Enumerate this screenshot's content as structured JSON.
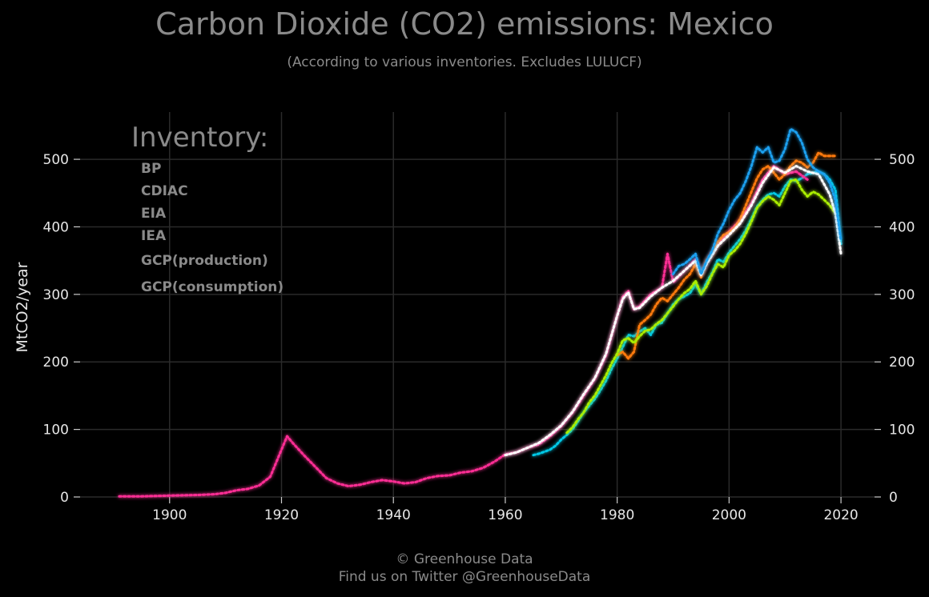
{
  "header": {
    "title": "Carbon Dioxide (CO2) emissions: Mexico",
    "subtitle": "(According to various inventories. Excludes LULUCF)"
  },
  "footer": {
    "line1": "© Greenhouse Data",
    "line2": "Find us on Twitter @GreenhouseData"
  },
  "chart_data": {
    "type": "line",
    "title": "Carbon Dioxide (CO2) emissions: Mexico",
    "subtitle": "(According to various inventories. Excludes LULUCF)",
    "ylabel": "MtCO2/year",
    "xlabel": "",
    "xlim": [
      1884,
      2026
    ],
    "ylim": [
      0,
      570
    ],
    "x_ticks": [
      1900,
      1920,
      1940,
      1960,
      1980,
      2000,
      2020
    ],
    "y_ticks": [
      0,
      100,
      200,
      300,
      400,
      500
    ],
    "grid": true,
    "line_style": "dotted with glow",
    "legend": {
      "title": "Inventory:",
      "position": "top-left"
    },
    "series": [
      {
        "name": "BP",
        "color": "#00c8e6",
        "x": [
          1965,
          1966,
          1967,
          1968,
          1969,
          1970,
          1971,
          1972,
          1973,
          1974,
          1975,
          1976,
          1977,
          1978,
          1979,
          1980,
          1981,
          1982,
          1983,
          1984,
          1985,
          1986,
          1987,
          1988,
          1989,
          1990,
          1991,
          1992,
          1993,
          1994,
          1995,
          1996,
          1997,
          1998,
          1999,
          2000,
          2001,
          2002,
          2003,
          2004,
          2005,
          2006,
          2007,
          2008,
          2009,
          2010,
          2011,
          2012,
          2013,
          2014,
          2015,
          2016,
          2017,
          2018,
          2019,
          2020
        ],
        "y": [
          62,
          64,
          67,
          70,
          76,
          85,
          92,
          100,
          112,
          125,
          135,
          145,
          158,
          172,
          190,
          205,
          222,
          240,
          238,
          245,
          250,
          240,
          255,
          258,
          272,
          285,
          293,
          297,
          302,
          315,
          300,
          318,
          332,
          352,
          348,
          362,
          372,
          382,
          395,
          412,
          430,
          440,
          448,
          450,
          445,
          460,
          470,
          468,
          472,
          478,
          480,
          482,
          478,
          470,
          455,
          375
        ]
      },
      {
        "name": "CDIAC",
        "color": "#ff2d95",
        "x": [
          1891,
          1895,
          1900,
          1905,
          1908,
          1910,
          1912,
          1914,
          1916,
          1918,
          1920,
          1921,
          1922,
          1924,
          1926,
          1928,
          1930,
          1932,
          1934,
          1936,
          1938,
          1940,
          1942,
          1944,
          1946,
          1948,
          1950,
          1952,
          1954,
          1956,
          1958,
          1960,
          1962,
          1964,
          1966,
          1968,
          1970,
          1972,
          1974,
          1976,
          1978,
          1980,
          1981,
          1982,
          1983,
          1984,
          1986,
          1988,
          1989,
          1990,
          1992,
          1994,
          1995,
          1996,
          1998,
          2000,
          2002,
          2004,
          2006,
          2008,
          2010,
          2012,
          2014
        ],
        "y": [
          1,
          1,
          2,
          3,
          4,
          6,
          10,
          12,
          17,
          30,
          70,
          90,
          80,
          62,
          45,
          28,
          20,
          16,
          18,
          22,
          25,
          23,
          20,
          22,
          28,
          31,
          32,
          36,
          38,
          43,
          52,
          63,
          66,
          73,
          78,
          90,
          105,
          125,
          150,
          175,
          210,
          268,
          296,
          305,
          278,
          282,
          300,
          310,
          360,
          318,
          335,
          352,
          330,
          348,
          375,
          393,
          410,
          435,
          470,
          490,
          478,
          482,
          470
        ]
      },
      {
        "name": "EIA",
        "color": "#ff7a10",
        "x": [
          1980,
          1981,
          1982,
          1983,
          1984,
          1985,
          1986,
          1987,
          1988,
          1989,
          1990,
          1991,
          1992,
          1993,
          1994,
          1995,
          1996,
          1997,
          1998,
          1999,
          2000,
          2001,
          2002,
          2003,
          2004,
          2005,
          2006,
          2007,
          2008,
          2009,
          2010,
          2011,
          2012,
          2013,
          2014,
          2015,
          2016,
          2017,
          2018,
          2019
        ],
        "y": [
          210,
          215,
          205,
          215,
          255,
          262,
          270,
          285,
          295,
          290,
          300,
          310,
          322,
          330,
          345,
          325,
          350,
          360,
          378,
          388,
          392,
          398,
          412,
          432,
          452,
          472,
          485,
          490,
          480,
          470,
          478,
          490,
          498,
          495,
          488,
          495,
          510,
          505,
          505,
          505
        ]
      },
      {
        "name": "IEA",
        "color": "#aaee00",
        "x": [
          1971,
          1972,
          1973,
          1974,
          1975,
          1976,
          1977,
          1978,
          1979,
          1980,
          1981,
          1982,
          1983,
          1984,
          1985,
          1986,
          1987,
          1988,
          1989,
          1990,
          1991,
          1992,
          1993,
          1994,
          1995,
          1996,
          1997,
          1998,
          1999,
          2000,
          2001,
          2002,
          2003,
          2004,
          2005,
          2006,
          2007,
          2008,
          2009,
          2010,
          2011,
          2012,
          2013,
          2014,
          2015,
          2016,
          2017,
          2018,
          2019
        ],
        "y": [
          95,
          103,
          115,
          125,
          140,
          150,
          165,
          180,
          198,
          212,
          232,
          235,
          228,
          238,
          246,
          248,
          256,
          262,
          272,
          282,
          293,
          302,
          308,
          320,
          300,
          312,
          330,
          345,
          340,
          358,
          365,
          375,
          390,
          408,
          428,
          438,
          445,
          440,
          432,
          450,
          468,
          470,
          455,
          445,
          452,
          448,
          440,
          432,
          420
        ]
      },
      {
        "name": "GCP(production)",
        "color": "#ffffff",
        "x": [
          1960,
          1962,
          1964,
          1966,
          1968,
          1970,
          1972,
          1974,
          1976,
          1978,
          1980,
          1981,
          1982,
          1983,
          1984,
          1986,
          1988,
          1990,
          1992,
          1994,
          1995,
          1996,
          1998,
          2000,
          2002,
          2004,
          2006,
          2008,
          2010,
          2012,
          2014,
          2016,
          2018,
          2019,
          2020
        ],
        "y": [
          62,
          66,
          73,
          80,
          92,
          106,
          126,
          152,
          176,
          212,
          268,
          293,
          303,
          278,
          280,
          297,
          310,
          320,
          335,
          350,
          328,
          345,
          372,
          388,
          405,
          432,
          465,
          488,
          480,
          490,
          482,
          478,
          448,
          420,
          360
        ]
      },
      {
        "name": "GCP(consumption)",
        "color": "#1aa0f0",
        "x": [
          1990,
          1991,
          1992,
          1993,
          1994,
          1995,
          1996,
          1997,
          1998,
          1999,
          2000,
          2001,
          2002,
          2003,
          2004,
          2005,
          2006,
          2007,
          2008,
          2009,
          2010,
          2011,
          2012,
          2013,
          2014,
          2015,
          2016,
          2017,
          2018,
          2019,
          2020
        ],
        "y": [
          330,
          342,
          345,
          352,
          360,
          330,
          350,
          365,
          390,
          405,
          425,
          440,
          450,
          468,
          490,
          518,
          510,
          518,
          495,
          498,
          515,
          545,
          540,
          525,
          500,
          488,
          482,
          478,
          465,
          440,
          380
        ]
      }
    ]
  }
}
